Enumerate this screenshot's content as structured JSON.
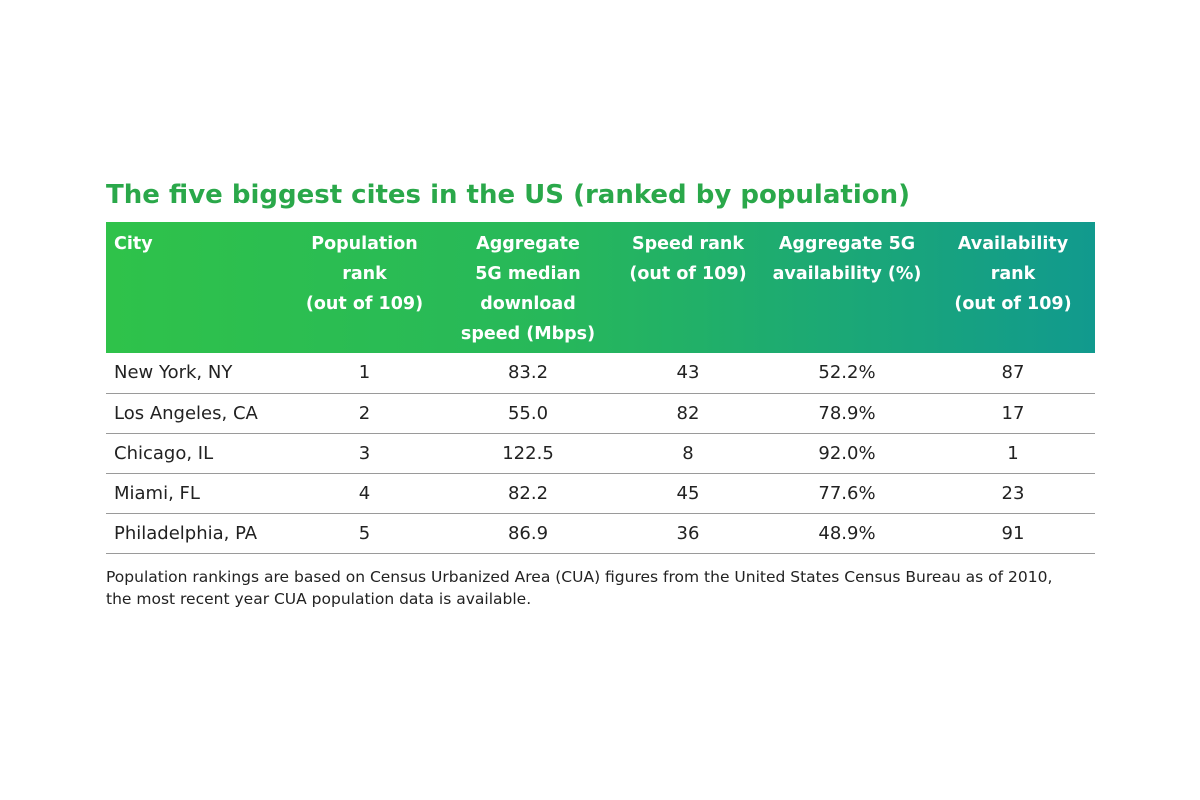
{
  "title": "The five biggest cites in the US (ranked by population)",
  "chart_data": {
    "type": "table",
    "title": "The five biggest cites in the US (ranked by population)",
    "columns": [
      [
        "City"
      ],
      [
        "Population",
        "rank",
        "(out of 109)"
      ],
      [
        "Aggregate",
        "5G median",
        "download",
        "speed (Mbps)"
      ],
      [
        "Speed rank",
        "(out of 109)"
      ],
      [
        "Aggregate 5G",
        "availability (%)"
      ],
      [
        "Availability",
        "rank",
        "(out of 109)"
      ]
    ],
    "rows": [
      [
        "New York, NY",
        "1",
        "83.2",
        "43",
        "52.2%",
        "87"
      ],
      [
        "Los Angeles, CA",
        "2",
        "55.0",
        "82",
        "78.9%",
        "17"
      ],
      [
        "Chicago, IL",
        "3",
        "122.5",
        "8",
        "92.0%",
        "1"
      ],
      [
        "Miami, FL",
        "4",
        "82.2",
        "45",
        "77.6%",
        "23"
      ],
      [
        "Philadelphia, PA",
        "5",
        "86.9",
        "36",
        "48.9%",
        "91"
      ]
    ]
  },
  "footnote": [
    "Population rankings are based on Census Urbanized Area (CUA) figures from the United States Census Bureau as of 2010,",
    "the most recent year CUA population data is available."
  ],
  "colors": {
    "title": "#2aa84a",
    "header_gradient_start": "#2fc24a",
    "header_gradient_end": "#119a8e",
    "row_divider": "#9a9a9a"
  }
}
